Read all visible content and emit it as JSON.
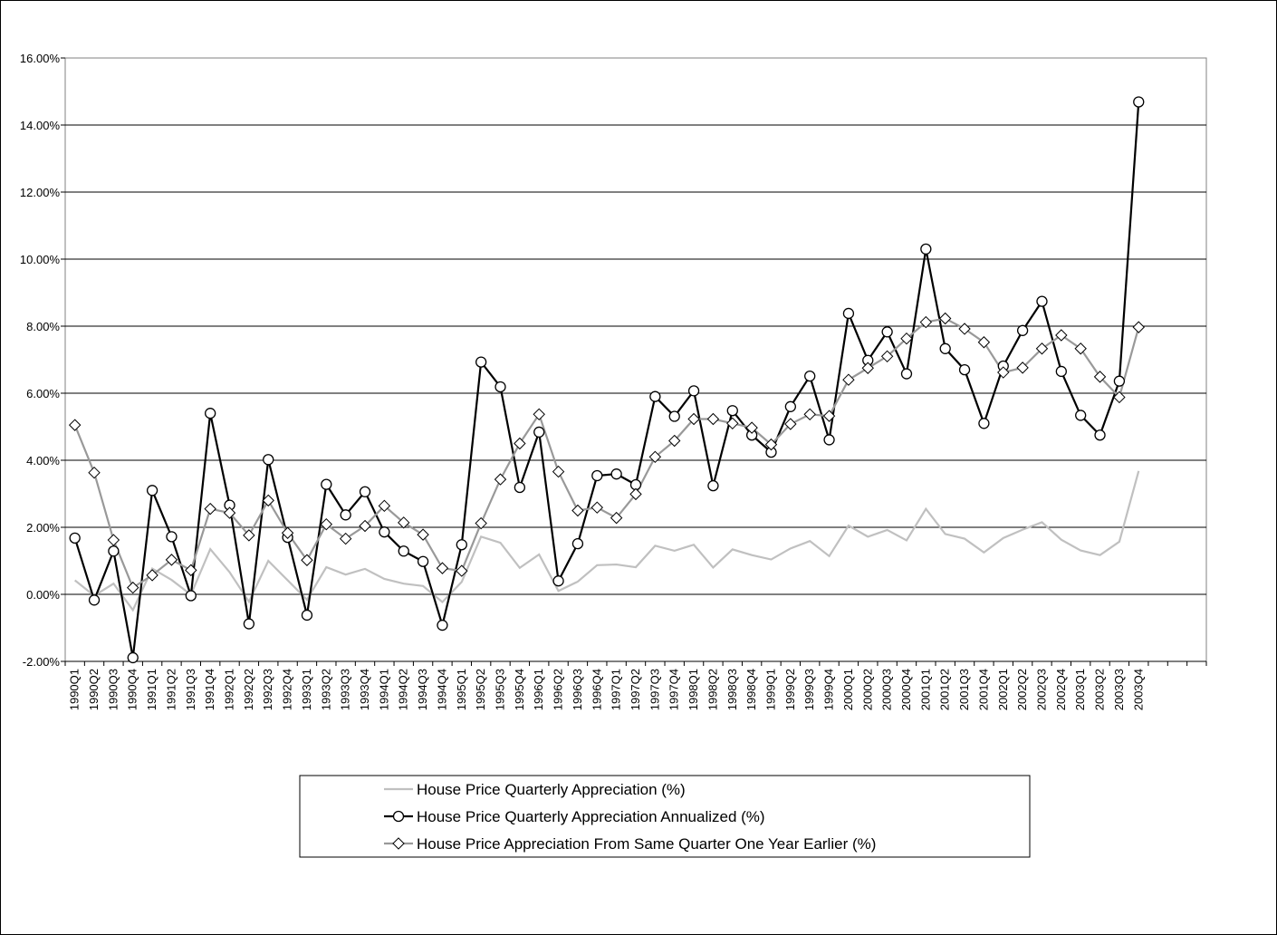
{
  "chart_data": {
    "type": "line",
    "categories": [
      "1990Q1",
      "1990Q2",
      "1990Q3",
      "1990Q4",
      "1991Q1",
      "1991Q2",
      "1991Q3",
      "1991Q4",
      "1992Q1",
      "1992Q2",
      "1992Q3",
      "1992Q4",
      "1993Q1",
      "1993Q2",
      "1993Q3",
      "1993Q4",
      "1994Q1",
      "1994Q2",
      "1994Q3",
      "1994Q4",
      "1995Q1",
      "1995Q2",
      "1995Q3",
      "1995Q4",
      "1996Q1",
      "1996Q2",
      "1996Q3",
      "1996Q4",
      "1997Q1",
      "1997Q2",
      "1997Q3",
      "1997Q4",
      "1998Q1",
      "1998Q2",
      "1998Q3",
      "1998Q4",
      "1999Q1",
      "1999Q2",
      "1999Q3",
      "1999Q4",
      "2000Q1",
      "2000Q2",
      "2000Q3",
      "2000Q4",
      "2001Q1",
      "2001Q2",
      "2001Q3",
      "2001Q4",
      "2002Q1",
      "2002Q2",
      "2002Q3",
      "2002Q4",
      "2003Q1",
      "2003Q2",
      "2003Q3",
      "2003Q4",
      null,
      null,
      null
    ],
    "series": [
      {
        "name": "House Price Quarterly Appreciation (%)",
        "color": "#c0c0c0",
        "marker": "none",
        "values": [
          0.42,
          -0.04,
          0.32,
          -0.47,
          0.77,
          0.43,
          -0.01,
          1.35,
          0.66,
          -0.22,
          1.0,
          0.42,
          -0.16,
          0.81,
          0.59,
          0.76,
          0.46,
          0.32,
          0.25,
          -0.23,
          0.37,
          1.72,
          1.54,
          0.79,
          1.19,
          0.1,
          0.38,
          0.87,
          0.89,
          0.81,
          1.45,
          1.3,
          1.48,
          0.8,
          1.34,
          1.17,
          1.04,
          1.37,
          1.59,
          1.14,
          2.05,
          1.72,
          1.92,
          1.61,
          2.55,
          1.8,
          1.66,
          1.25,
          1.68,
          1.93,
          2.15,
          1.63,
          1.31,
          1.17,
          1.57,
          3.68,
          null,
          null,
          null
        ]
      },
      {
        "name": "House Price Quarterly Appreciation Annualized (%)",
        "color": "#000000",
        "marker": "circle",
        "values": [
          1.68,
          -0.17,
          1.29,
          -1.89,
          3.1,
          1.72,
          -0.04,
          5.4,
          2.66,
          -0.88,
          4.02,
          1.7,
          -0.62,
          3.28,
          2.37,
          3.06,
          1.86,
          1.29,
          0.98,
          -0.92,
          1.48,
          6.93,
          6.19,
          3.19,
          4.84,
          0.4,
          1.51,
          3.54,
          3.59,
          3.27,
          5.9,
          5.31,
          6.07,
          3.24,
          5.48,
          4.75,
          4.24,
          5.6,
          6.51,
          4.61,
          8.38,
          6.98,
          7.83,
          6.58,
          10.3,
          7.33,
          6.7,
          5.1,
          6.81,
          7.87,
          8.74,
          6.65,
          5.34,
          4.75,
          6.36,
          14.69,
          null,
          null,
          null
        ]
      },
      {
        "name": "House Price Appreciation From Same Quarter One Year Earlier (%)",
        "color": "#999999",
        "marker": "diamond",
        "values": [
          5.05,
          3.63,
          1.62,
          0.2,
          0.57,
          1.03,
          0.72,
          2.55,
          2.43,
          1.76,
          2.8,
          1.83,
          1.02,
          2.09,
          1.66,
          2.04,
          2.64,
          2.14,
          1.78,
          0.78,
          0.7,
          2.12,
          3.43,
          4.5,
          5.37,
          3.66,
          2.5,
          2.59,
          2.28,
          2.99,
          4.1,
          4.58,
          5.23,
          5.23,
          5.1,
          4.97,
          4.47,
          5.08,
          5.37,
          5.32,
          6.4,
          6.75,
          7.1,
          7.63,
          8.12,
          8.23,
          7.92,
          7.52,
          6.62,
          6.76,
          7.33,
          7.73,
          7.33,
          6.49,
          5.88,
          7.97,
          null,
          null,
          null
        ]
      }
    ],
    "ylim": [
      -2,
      16
    ],
    "yticks": [
      {
        "value": -2,
        "label": "-2.00%"
      },
      {
        "value": 0,
        "label": "0.00%"
      },
      {
        "value": 2,
        "label": "2.00%"
      },
      {
        "value": 4,
        "label": "4.00%"
      },
      {
        "value": 6,
        "label": "6.00%"
      },
      {
        "value": 8,
        "label": "8.00%"
      },
      {
        "value": 10,
        "label": "10.00%"
      },
      {
        "value": 12,
        "label": "12.00%"
      },
      {
        "value": 14,
        "label": "14.00%"
      },
      {
        "value": 16,
        "label": "16.00%"
      }
    ],
    "grid": true,
    "legend": "bottom"
  }
}
